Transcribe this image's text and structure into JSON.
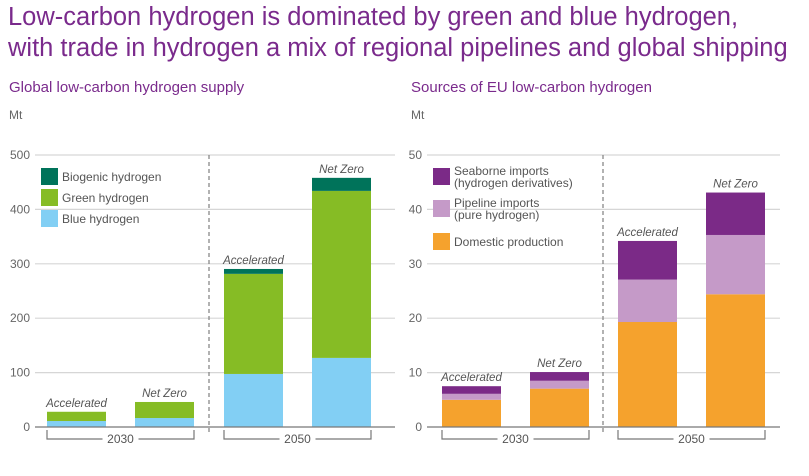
{
  "title_line1": "Low-carbon hydrogen is dominated by green and blue hydrogen,",
  "title_line2": "with trade in hydrogen a mix of regional pipelines and global shipping",
  "chart_data": [
    {
      "type": "bar",
      "stacked": true,
      "title": "Global low-carbon hydrogen supply",
      "ylabel": "Mt",
      "ylim": [
        0,
        500
      ],
      "yticks": [
        "0",
        "100",
        "200",
        "300",
        "400",
        "500"
      ],
      "groups": [
        "2030",
        "2050"
      ],
      "categories": [
        "Accelerated",
        "Net Zero",
        "Accelerated",
        "Net Zero"
      ],
      "legend_position": "top-left",
      "series": [
        {
          "name": "Blue hydrogen",
          "color": "#82cff4",
          "values": [
            11,
            16.5,
            97.5,
            127
          ]
        },
        {
          "name": "Green hydrogen",
          "color": "#86bc25",
          "values": [
            17,
            29.5,
            184,
            307
          ]
        },
        {
          "name": "Biogenic hydrogen",
          "color": "#00735a",
          "values": [
            0,
            0,
            9,
            24
          ]
        }
      ]
    },
    {
      "type": "bar",
      "stacked": true,
      "title": "Sources of EU low-carbon hydrogen",
      "ylabel": "Mt",
      "ylim": [
        0,
        50
      ],
      "yticks": [
        "0",
        "10",
        "20",
        "30",
        "40",
        "50"
      ],
      "groups": [
        "2030",
        "2050"
      ],
      "categories": [
        "Accelerated",
        "Net Zero",
        "Accelerated",
        "Net Zero"
      ],
      "legend_position": "top-left",
      "series": [
        {
          "name": "Domestic production",
          "color": "#f5a22d",
          "values": [
            5.0,
            7.05,
            19.3,
            24.4
          ]
        },
        {
          "name": "Pipeline imports (pure hydrogen)",
          "name_lines": [
            "Pipeline imports",
            "(pure hydrogen)"
          ],
          "color": "#c59ac8",
          "values": [
            1.1,
            1.45,
            7.8,
            10.9
          ]
        },
        {
          "name": "Seaborne imports (hydrogen derivatives)",
          "name_lines": [
            "Seaborne imports",
            "(hydrogen derivatives)"
          ],
          "color": "#7b2a87",
          "values": [
            1.4,
            1.6,
            7.1,
            7.8
          ]
        }
      ]
    }
  ]
}
